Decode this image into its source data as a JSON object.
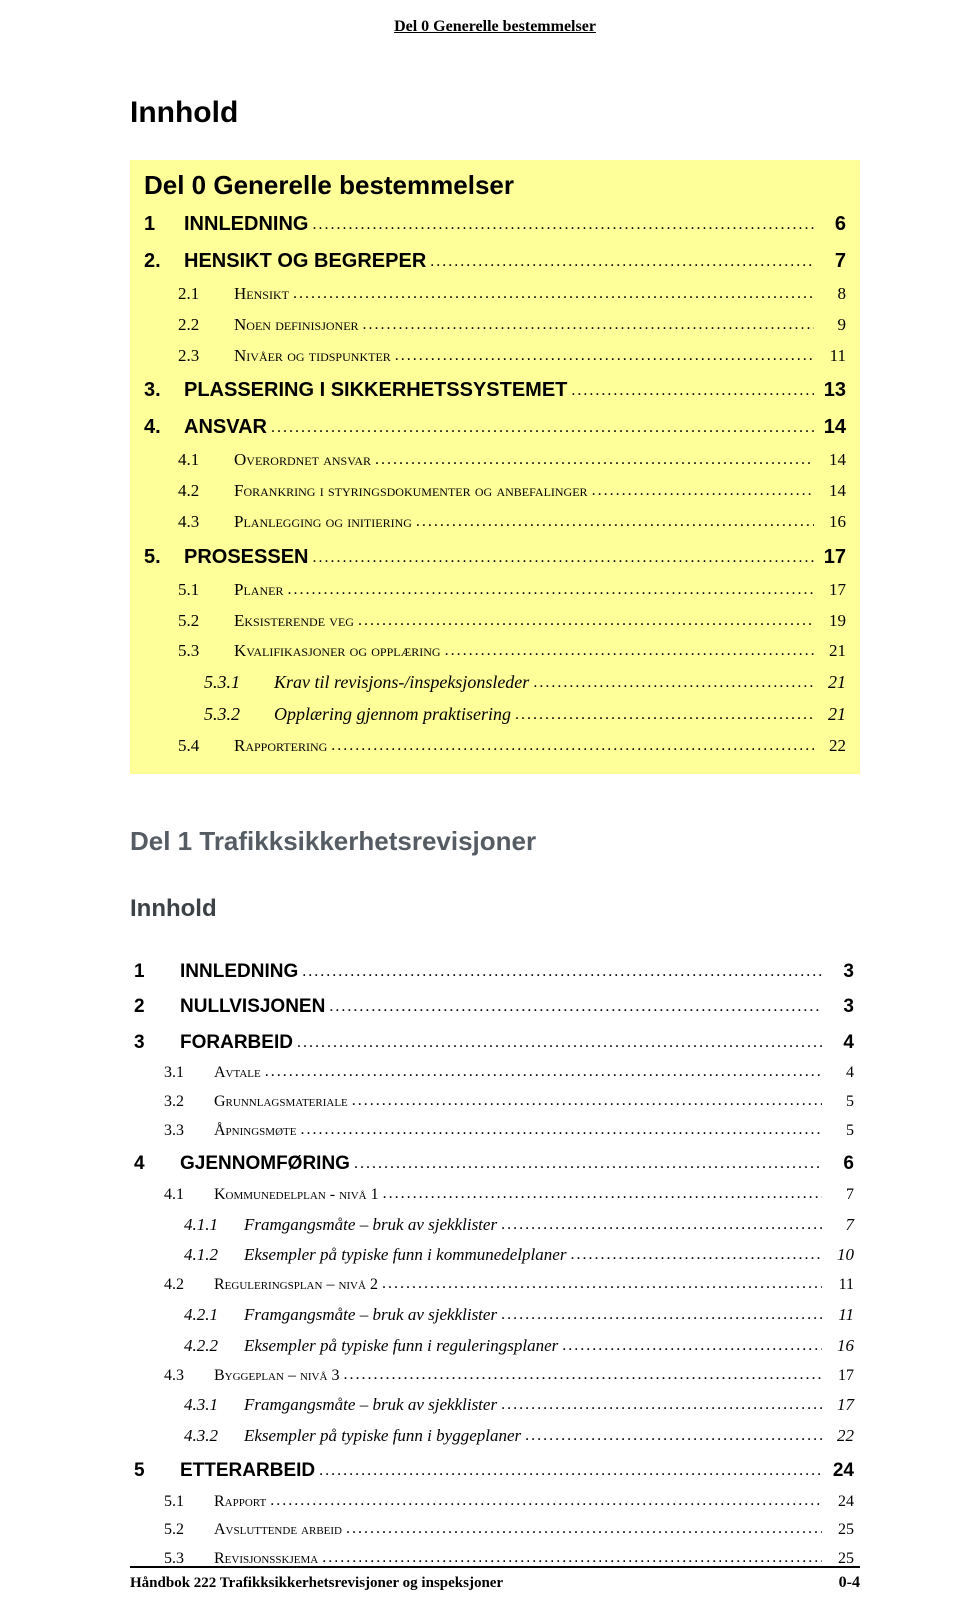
{
  "header": {
    "text": "Del 0 Generelle bestemmelser"
  },
  "title": "Innhold",
  "band": {
    "title": "Del 0 Generelle bestemmelser",
    "bg_color": "#ffff9a",
    "entries": [
      {
        "level": 1,
        "num": "1",
        "label": "INNLEDNING",
        "page": "6"
      },
      {
        "level": 1,
        "num": "2.",
        "label": "HENSIKT OG BEGREPER",
        "page": "7"
      },
      {
        "level": 2,
        "num": "2.1",
        "label": "HENSIKT",
        "page": "8",
        "smallcaps": true
      },
      {
        "level": 2,
        "num": "2.2",
        "label": "NOEN DEFINISJONER",
        "page": "9",
        "smallcaps": true
      },
      {
        "level": 2,
        "num": "2.3",
        "label": "NIVÅER OG TIDSPUNKTER",
        "page": "11",
        "smallcaps": true
      },
      {
        "level": 1,
        "num": "3.",
        "label": "PLASSERING I SIKKERHETSSYSTEMET",
        "page": "13"
      },
      {
        "level": 1,
        "num": "4.",
        "label": "ANSVAR",
        "page": "14"
      },
      {
        "level": 2,
        "num": "4.1",
        "label": "OVERORDNET ANSVAR",
        "page": "14",
        "smallcaps": true
      },
      {
        "level": 2,
        "num": "4.2",
        "label": "FORANKRING I STYRINGSDOKUMENTER OG ANBEFALINGER",
        "page": "14",
        "smallcaps": true
      },
      {
        "level": 2,
        "num": "4.3",
        "label": "PLANLEGGING OG INITIERING",
        "page": "16",
        "smallcaps": true
      },
      {
        "level": 1,
        "num": "5.",
        "label": "PROSESSEN",
        "page": "17"
      },
      {
        "level": 2,
        "num": "5.1",
        "label": "PLANER",
        "page": "17",
        "smallcaps": true
      },
      {
        "level": 2,
        "num": "5.2",
        "label": "EKSISTERENDE VEG",
        "page": "19",
        "smallcaps": true
      },
      {
        "level": 2,
        "num": "5.3",
        "label": "KVALIFIKASJONER OG OPPLÆRING",
        "page": "21",
        "smallcaps": true
      },
      {
        "level": 3,
        "num": "5.3.1",
        "label": "Krav til revisjons-/inspeksjonsleder",
        "page": "21"
      },
      {
        "level": 3,
        "num": "5.3.2",
        "label": "Opplæring gjennom praktisering",
        "page": "21"
      },
      {
        "level": 2,
        "num": "5.4",
        "label": "RAPPORTERING",
        "page": "22",
        "smallcaps": true
      }
    ]
  },
  "second_section": {
    "title": "Del 1 Trafikksikkerhetsrevisjoner",
    "subtitle": "Innhold",
    "entries": [
      {
        "level": 1,
        "num": "1",
        "label": "INNLEDNING",
        "page": "3"
      },
      {
        "level": 1,
        "num": "2",
        "label": "NULLVISJONEN",
        "page": "3"
      },
      {
        "level": 1,
        "num": "3",
        "label": "FORARBEID",
        "page": "4"
      },
      {
        "level": 2,
        "num": "3.1",
        "label": "AVTALE",
        "page": "4",
        "smallcaps": true
      },
      {
        "level": 2,
        "num": "3.2",
        "label": "GRUNNLAGSMATERIALE",
        "page": "5",
        "smallcaps": true
      },
      {
        "level": 2,
        "num": "3.3",
        "label": "ÅPNINGSMØTE",
        "page": "5",
        "smallcaps": true
      },
      {
        "level": 1,
        "num": "4",
        "label": "GJENNOMFØRING",
        "page": "6"
      },
      {
        "level": 2,
        "num": "4.1",
        "label": "KOMMUNEDELPLAN - NIVÅ 1",
        "page": "7",
        "smallcaps": true
      },
      {
        "level": 3,
        "num": "4.1.1",
        "label": "Framgangsmåte – bruk av sjekklister",
        "page": "7"
      },
      {
        "level": 3,
        "num": "4.1.2",
        "label": "Eksempler på typiske funn i kommunedelplaner",
        "page": "10"
      },
      {
        "level": 2,
        "num": "4.2",
        "label": "REGULERINGSPLAN – NIVÅ 2",
        "page": "11",
        "smallcaps": true
      },
      {
        "level": 3,
        "num": "4.2.1",
        "label": "Framgangsmåte – bruk av sjekklister",
        "page": "11"
      },
      {
        "level": 3,
        "num": "4.2.2",
        "label": "Eksempler på typiske funn i reguleringsplaner",
        "page": "16"
      },
      {
        "level": 2,
        "num": "4.3",
        "label": "BYGGEPLAN – NIVÅ 3",
        "page": "17",
        "smallcaps": true
      },
      {
        "level": 3,
        "num": "4.3.1",
        "label": "Framgangsmåte – bruk av sjekklister",
        "page": "17"
      },
      {
        "level": 3,
        "num": "4.3.2",
        "label": "Eksempler på typiske funn i byggeplaner",
        "page": "22"
      },
      {
        "level": 1,
        "num": "5",
        "label": "ETTERARBEID",
        "page": "24"
      },
      {
        "level": 2,
        "num": "5.1",
        "label": "RAPPORT",
        "page": "24",
        "smallcaps": true
      },
      {
        "level": 2,
        "num": "5.2",
        "label": "AVSLUTTENDE ARBEID",
        "page": "25",
        "smallcaps": true
      },
      {
        "level": 2,
        "num": "5.3",
        "label": "REVISJONSSKJEMA",
        "page": "25",
        "smallcaps": true
      }
    ]
  },
  "footer": {
    "text": "Håndbok 222 Trafikksikkerhetsrevisjoner og inspeksjoner",
    "page": "0-4"
  }
}
